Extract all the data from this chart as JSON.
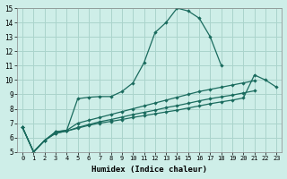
{
  "xlabel": "Humidex (Indice chaleur)",
  "bg_color": "#ceeee8",
  "grid_color": "#aad4cc",
  "line_color": "#1a6b5e",
  "xlim": [
    -0.5,
    23.5
  ],
  "ylim": [
    5,
    15
  ],
  "xticks": [
    0,
    1,
    2,
    3,
    4,
    5,
    6,
    7,
    8,
    9,
    10,
    11,
    12,
    13,
    14,
    15,
    16,
    17,
    18,
    19,
    20,
    21,
    22,
    23
  ],
  "yticks": [
    5,
    6,
    7,
    8,
    9,
    10,
    11,
    12,
    13,
    14,
    15
  ],
  "curve1_x": [
    0,
    1,
    2,
    3,
    4,
    5,
    6,
    7,
    8,
    9,
    10,
    11,
    12,
    13,
    14,
    15,
    16,
    17,
    18
  ],
  "curve1_y": [
    6.7,
    5.0,
    5.8,
    6.4,
    6.5,
    8.7,
    8.8,
    8.85,
    8.85,
    9.2,
    9.8,
    11.2,
    13.3,
    14.0,
    15.0,
    14.8,
    14.3,
    13.0,
    11.0
  ],
  "curve2_x": [
    0,
    1,
    2,
    3,
    4,
    5,
    6,
    7,
    8,
    9,
    10,
    11,
    12,
    13,
    14,
    15,
    16,
    17,
    18,
    19,
    20,
    21
  ],
  "curve2_y": [
    6.7,
    5.0,
    5.8,
    6.4,
    6.5,
    7.0,
    7.2,
    7.4,
    7.6,
    7.8,
    8.0,
    8.2,
    8.4,
    8.6,
    8.8,
    9.0,
    9.2,
    9.35,
    9.5,
    9.65,
    9.8,
    9.95
  ],
  "curve3_x": [
    0,
    1,
    2,
    3,
    4,
    5,
    6,
    7,
    8,
    9,
    10,
    11,
    12,
    13,
    14,
    15,
    16,
    17,
    18,
    19,
    20,
    21
  ],
  "curve3_y": [
    6.7,
    5.0,
    5.8,
    6.3,
    6.45,
    6.7,
    6.9,
    7.1,
    7.25,
    7.42,
    7.6,
    7.75,
    7.9,
    8.08,
    8.22,
    8.38,
    8.55,
    8.7,
    8.83,
    8.95,
    9.1,
    9.25
  ],
  "curve4_x": [
    0,
    1,
    2,
    3,
    4,
    5,
    6,
    7,
    8,
    9,
    10,
    11,
    12,
    13,
    14,
    15,
    16,
    17,
    18,
    19,
    20,
    21,
    22,
    23
  ],
  "curve4_y": [
    6.7,
    5.0,
    5.8,
    6.3,
    6.45,
    6.65,
    6.85,
    7.0,
    7.12,
    7.25,
    7.4,
    7.52,
    7.65,
    7.78,
    7.9,
    8.05,
    8.2,
    8.35,
    8.48,
    8.6,
    8.75,
    10.35,
    10.0,
    9.5
  ]
}
